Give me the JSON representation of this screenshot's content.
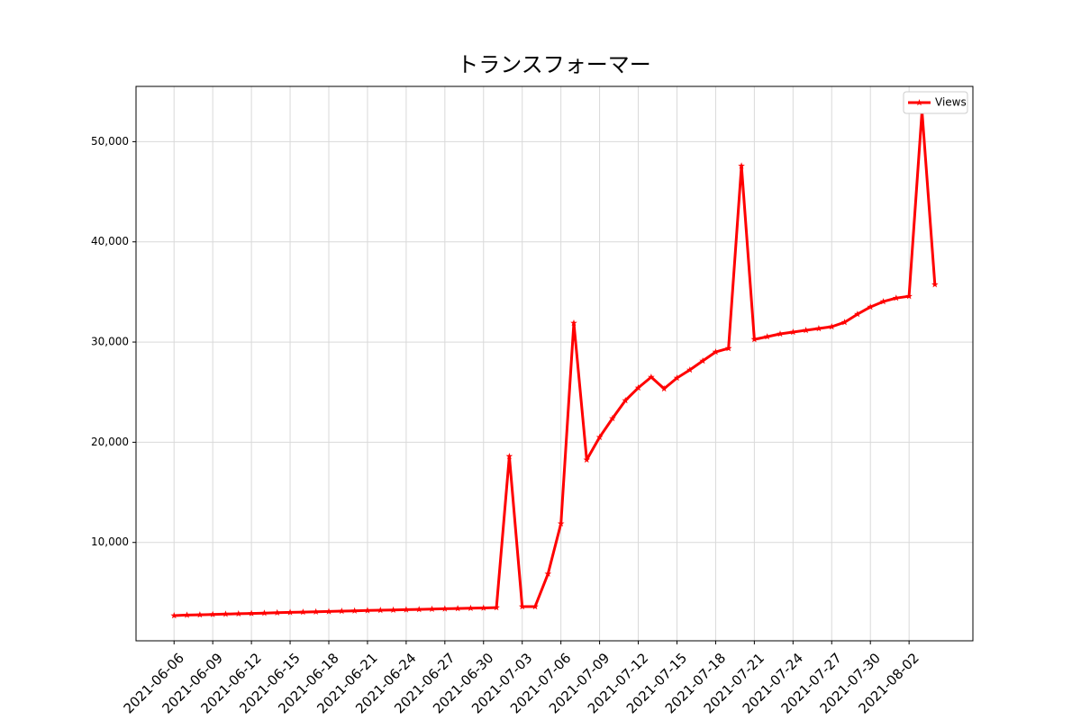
{
  "chart_data": {
    "type": "line",
    "title": "トランスフォーマー",
    "x": [
      "2021-06-06",
      "2021-06-07",
      "2021-06-08",
      "2021-06-09",
      "2021-06-10",
      "2021-06-11",
      "2021-06-12",
      "2021-06-13",
      "2021-06-14",
      "2021-06-15",
      "2021-06-16",
      "2021-06-17",
      "2021-06-18",
      "2021-06-19",
      "2021-06-20",
      "2021-06-21",
      "2021-06-22",
      "2021-06-23",
      "2021-06-24",
      "2021-06-25",
      "2021-06-26",
      "2021-06-27",
      "2021-06-28",
      "2021-06-29",
      "2021-06-30",
      "2021-07-01",
      "2021-07-02",
      "2021-07-03",
      "2021-07-04",
      "2021-07-05",
      "2021-07-06",
      "2021-07-07",
      "2021-07-08",
      "2021-07-09",
      "2021-07-10",
      "2021-07-11",
      "2021-07-12",
      "2021-07-13",
      "2021-07-14",
      "2021-07-15",
      "2021-07-16",
      "2021-07-17",
      "2021-07-18",
      "2021-07-19",
      "2021-07-20",
      "2021-07-21",
      "2021-07-22",
      "2021-07-23",
      "2021-07-24",
      "2021-07-25",
      "2021-07-26",
      "2021-07-27",
      "2021-07-28",
      "2021-07-29",
      "2021-07-30",
      "2021-07-31",
      "2021-08-01",
      "2021-08-02",
      "2021-08-03",
      "2021-08-04"
    ],
    "series": [
      {
        "name": "Views",
        "color": "#ff0000",
        "values": [
          2700,
          2750,
          2780,
          2820,
          2850,
          2890,
          2920,
          2950,
          2990,
          3020,
          3050,
          3080,
          3110,
          3150,
          3180,
          3210,
          3240,
          3260,
          3290,
          3320,
          3350,
          3380,
          3410,
          3440,
          3460,
          3500,
          18600,
          3600,
          3600,
          6860,
          11880,
          31900,
          18250,
          20500,
          22380,
          24170,
          25430,
          26500,
          25340,
          26410,
          27220,
          28120,
          29010,
          29370,
          47580,
          30270,
          30540,
          30810,
          30990,
          31170,
          31350,
          31530,
          31970,
          32780,
          33500,
          34040,
          34390,
          34570,
          53050,
          35740
        ]
      }
    ],
    "xticks": [
      "2021-06-06",
      "2021-06-09",
      "2021-06-12",
      "2021-06-15",
      "2021-06-18",
      "2021-06-21",
      "2021-06-24",
      "2021-06-27",
      "2021-06-30",
      "2021-07-03",
      "2021-07-06",
      "2021-07-09",
      "2021-07-12",
      "2021-07-15",
      "2021-07-18",
      "2021-07-21",
      "2021-07-24",
      "2021-07-27",
      "2021-07-30",
      "2021-08-02"
    ],
    "ylim": [
      185,
      55515
    ],
    "yticks": [
      {
        "value": 10000,
        "label": "10,000"
      },
      {
        "value": 20000,
        "label": "20,000"
      },
      {
        "value": 30000,
        "label": "30,000"
      },
      {
        "value": 40000,
        "label": "40,000"
      },
      {
        "value": 50000,
        "label": "50,000"
      }
    ],
    "grid": true,
    "legend": "upper right"
  }
}
